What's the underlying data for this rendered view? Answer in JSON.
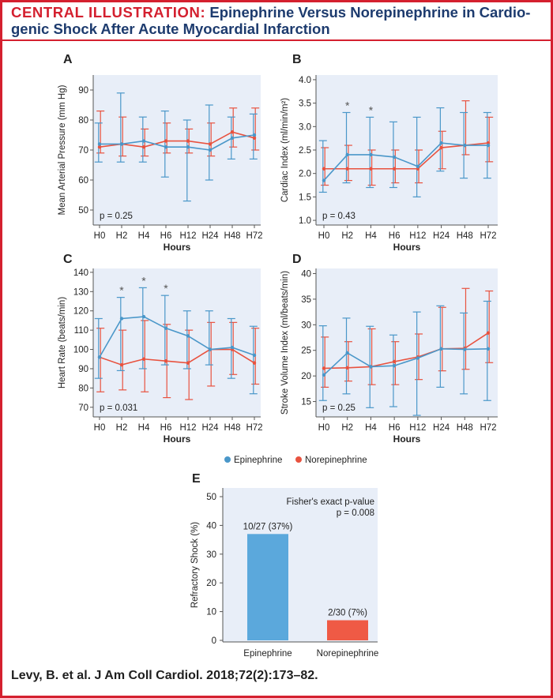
{
  "header": {
    "label": "CENTRAL ILLUSTRATION:",
    "title": "Epinephrine Versus Norepinephrine in Cardio-genic Shock After Acute Myocardial Infarction"
  },
  "citation": "Levy, B. et al. J Am Coll Cardiol. 2018;72(2):173–82.",
  "colors": {
    "epinephrine": "#4a97c9",
    "norepinephrine": "#e8523f",
    "panel_bg": "#e8eef8",
    "accent": "#d4202f",
    "title": "#1d3b6e",
    "bar_epinephrine": "#5ba8dc",
    "bar_norepinephrine": "#ef5a45"
  },
  "legend": {
    "epinephrine": "Epinephrine",
    "norepinephrine": "Norepinephrine"
  },
  "chart_data": [
    {
      "id": "A",
      "type": "line",
      "ylabel": "Mean Arterial Pressure (mm Hg)",
      "xlabel": "Hours",
      "categories": [
        "H0",
        "H2",
        "H4",
        "H6",
        "H12",
        "H24",
        "H48",
        "H72"
      ],
      "ylim": [
        45,
        95
      ],
      "yticks": [
        "50",
        "60",
        "70",
        "80",
        "90"
      ],
      "annotation": "p = 0.25",
      "series": [
        {
          "name": "Epinephrine",
          "values": [
            72,
            72,
            73,
            71,
            71,
            70,
            74,
            75
          ],
          "lower": [
            66,
            66,
            66,
            61,
            53,
            60,
            67,
            67
          ],
          "upper": [
            79,
            89,
            81,
            83,
            80,
            85,
            81,
            82
          ]
        },
        {
          "name": "Norepinephrine",
          "values": [
            71,
            72,
            71,
            73,
            73,
            72,
            76,
            74
          ],
          "lower": [
            69,
            68,
            68,
            69,
            69,
            68,
            71,
            70
          ],
          "upper": [
            83,
            81,
            77,
            79,
            77,
            79,
            84,
            84
          ]
        }
      ],
      "significance": []
    },
    {
      "id": "B",
      "type": "line",
      "ylabel": "Cardiac Index (ml/min/m²)",
      "xlabel": "Hours",
      "categories": [
        "H0",
        "H2",
        "H4",
        "H6",
        "H12",
        "H24",
        "H48",
        "H72"
      ],
      "ylim": [
        0.9,
        4.1
      ],
      "yticks": [
        "1.0",
        "1.5",
        "2.0",
        "2.5",
        "3.0",
        "3.5",
        "4.0"
      ],
      "annotation": "p = 0.43",
      "series": [
        {
          "name": "Epinephrine",
          "values": [
            1.85,
            2.4,
            2.4,
            2.35,
            2.15,
            2.65,
            2.6,
            2.6
          ],
          "lower": [
            1.6,
            1.8,
            1.7,
            1.7,
            1.5,
            2.05,
            1.9,
            1.9
          ],
          "upper": [
            2.7,
            3.3,
            3.2,
            3.1,
            3.2,
            3.4,
            3.3,
            3.3
          ]
        },
        {
          "name": "Norepinephrine",
          "values": [
            2.1,
            2.1,
            2.1,
            2.1,
            2.1,
            2.55,
            2.6,
            2.65
          ],
          "lower": [
            1.75,
            1.85,
            1.75,
            1.8,
            1.8,
            2.1,
            2.4,
            2.25
          ],
          "upper": [
            2.55,
            2.6,
            2.5,
            2.5,
            2.5,
            2.9,
            3.55,
            3.2
          ]
        }
      ],
      "significance": [
        "H2",
        "H4"
      ]
    },
    {
      "id": "C",
      "type": "line",
      "ylabel": "Heart Rate (beats/min)",
      "xlabel": "Hours",
      "categories": [
        "H0",
        "H2",
        "H4",
        "H6",
        "H12",
        "H24",
        "H48",
        "H72"
      ],
      "ylim": [
        65,
        142
      ],
      "yticks": [
        "70",
        "80",
        "90",
        "100",
        "110",
        "120",
        "130",
        "140"
      ],
      "annotation": "p = 0.031",
      "series": [
        {
          "name": "Epinephrine",
          "values": [
            96,
            116,
            117,
            111,
            107,
            100,
            101,
            97
          ],
          "lower": [
            85,
            89,
            90,
            92,
            90,
            92,
            85,
            77
          ],
          "upper": [
            116,
            127,
            132,
            128,
            120,
            120,
            116,
            112
          ]
        },
        {
          "name": "Norepinephrine",
          "values": [
            96,
            92,
            95,
            94,
            93,
            100,
            100,
            93
          ],
          "lower": [
            78,
            79,
            78,
            75,
            74,
            81,
            87,
            82
          ],
          "upper": [
            111,
            110,
            115,
            113,
            110,
            114,
            114,
            111
          ]
        }
      ],
      "significance": [
        "H2",
        "H4",
        "H6"
      ]
    },
    {
      "id": "D",
      "type": "line",
      "ylabel": "Stroke Volume Index (ml/beats/min)",
      "xlabel": "Hours",
      "categories": [
        "H0",
        "H2",
        "H4",
        "H6",
        "H12",
        "H24",
        "H48",
        "H72"
      ],
      "ylim": [
        12,
        41
      ],
      "yticks": [
        "15",
        "20",
        "25",
        "30",
        "35",
        "40"
      ],
      "annotation": "p = 0.25",
      "series": [
        {
          "name": "Epinephrine",
          "values": [
            20.2,
            24.5,
            21.8,
            22.0,
            23.5,
            25.3,
            25.2,
            25.3
          ],
          "lower": [
            15.2,
            16.5,
            13.8,
            14.0,
            12.3,
            17.8,
            16.5,
            15.2
          ],
          "upper": [
            29.8,
            31.3,
            29.7,
            28.0,
            32.5,
            33.7,
            32.3,
            34.6
          ]
        },
        {
          "name": "Norepinephrine",
          "values": [
            21.5,
            21.6,
            21.8,
            22.8,
            23.7,
            25.3,
            25.4,
            28.4
          ],
          "lower": [
            17.8,
            19.0,
            18.3,
            18.3,
            19.3,
            21.0,
            21.3,
            22.6
          ],
          "upper": [
            27.6,
            26.7,
            29.2,
            26.7,
            28.2,
            33.4,
            37.1,
            36.6
          ]
        }
      ],
      "significance": []
    },
    {
      "id": "E",
      "type": "bar",
      "ylabel": "Refractory Shock (%)",
      "xlabel": "",
      "categories": [
        "Epinephrine",
        "Norepinephrine"
      ],
      "values": [
        37,
        7
      ],
      "data_labels": [
        "10/27 (37%)",
        "2/30 (7%)"
      ],
      "ylim": [
        0,
        50
      ],
      "yticks": [
        "0",
        "10",
        "20",
        "30",
        "40",
        "50"
      ],
      "annotation": [
        "Fisher's exact p-value",
        "p = 0.008"
      ]
    }
  ]
}
